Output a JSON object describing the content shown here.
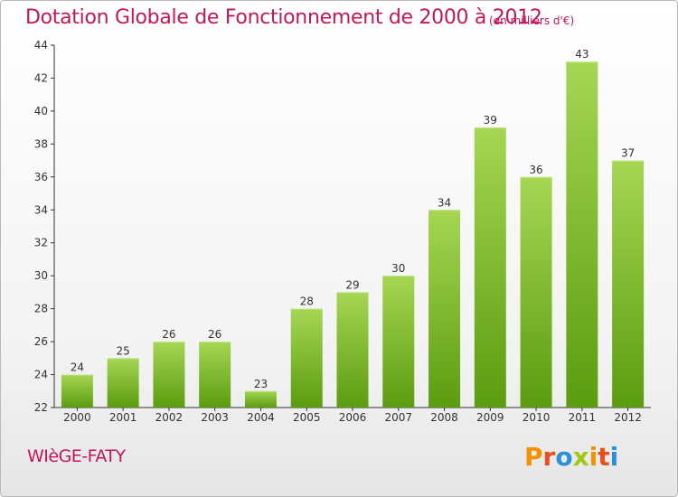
{
  "header": {
    "title": "Dotation Globale de Fonctionnement de 2000 à 2012",
    "subtitle": "(en milliers d'€)"
  },
  "footer": {
    "commune": "WIèGE-FATY",
    "logo_text": "Proxiti",
    "logo_colors": [
      "#f39200",
      "#e94e1b",
      "#2a8fd6",
      "#a0c814",
      "#f39200",
      "#e94e1b",
      "#2a8fd6"
    ]
  },
  "colors": {
    "title": "#c2185b",
    "bar_light": "#9fd04a",
    "bar_dark": "#5e9e12",
    "axis": "#333333"
  },
  "chart_data": {
    "type": "bar",
    "title": "Dotation Globale de Fonctionnement de 2000 à 2012",
    "subtitle": "(en milliers d'€)",
    "categories": [
      "2000",
      "2001",
      "2002",
      "2003",
      "2004",
      "2005",
      "2006",
      "2007",
      "2008",
      "2009",
      "2010",
      "2011",
      "2012"
    ],
    "values": [
      24,
      25,
      26,
      26,
      23,
      28,
      29,
      30,
      34,
      39,
      36,
      43,
      37
    ],
    "xlabel": "",
    "ylabel": "",
    "ylim": [
      22,
      44
    ],
    "yticks": [
      22,
      24,
      26,
      28,
      30,
      32,
      34,
      36,
      38,
      40,
      42,
      44
    ],
    "grid": false,
    "data_labels": true
  }
}
